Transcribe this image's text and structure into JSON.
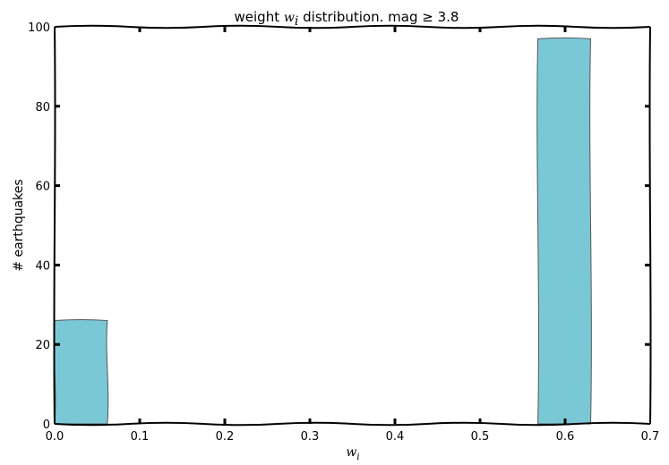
{
  "chart_data": {
    "type": "bar",
    "title_prefix": "weight",
    "title_var": "w",
    "title_sub": "i",
    "title_suffix": "distribution. mag",
    "title_symbol": "≥",
    "title_value": "3.8",
    "xlabel_var": "w",
    "xlabel_sub": "i",
    "ylabel": "# earthquakes",
    "xlim": [
      0.0,
      0.7
    ],
    "ylim": [
      0,
      100
    ],
    "x_ticks": [
      "0.0",
      "0.1",
      "0.2",
      "0.3",
      "0.4",
      "0.5",
      "0.6",
      "0.7"
    ],
    "y_ticks": [
      "0",
      "20",
      "40",
      "60",
      "80",
      "100"
    ],
    "bars": [
      {
        "x0": 0.0,
        "x1": 0.062,
        "value": 26
      },
      {
        "x0": 0.568,
        "x1": 0.63,
        "value": 97
      }
    ],
    "bar_color": "#7ac8d6",
    "grid": false
  }
}
